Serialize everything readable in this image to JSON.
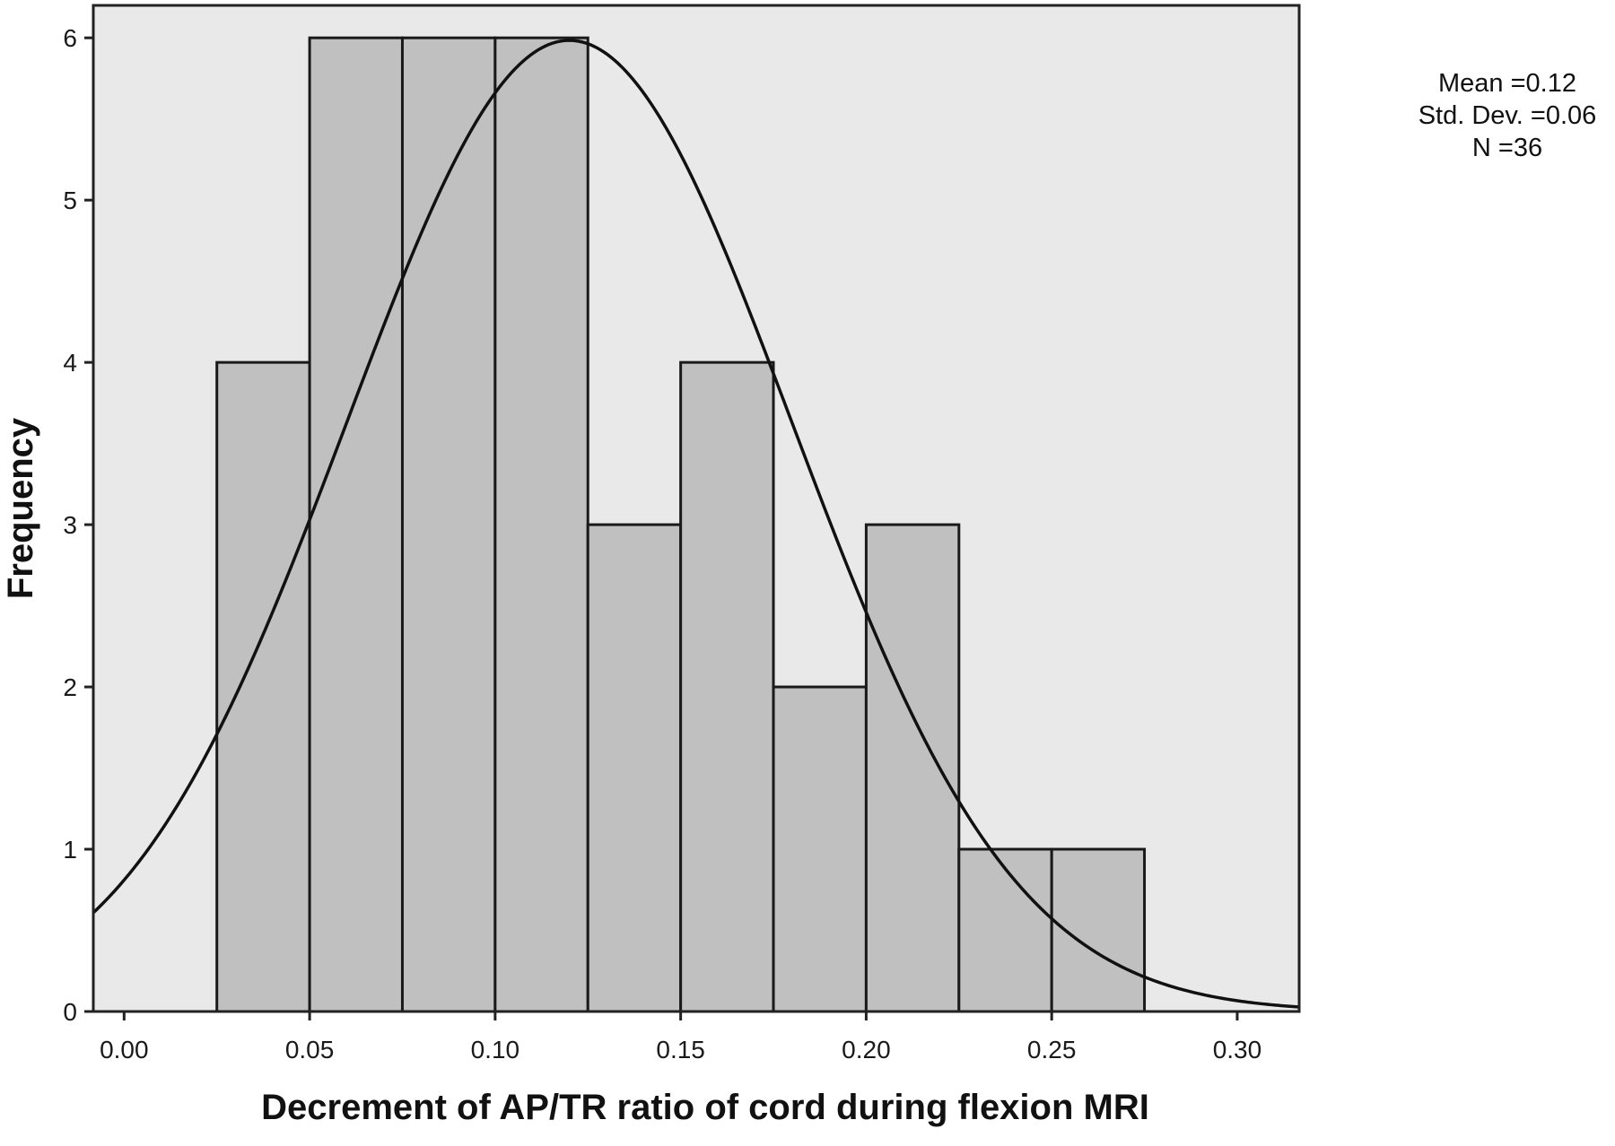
{
  "chart_data": {
    "type": "bar",
    "subtype": "histogram",
    "xlabel": "Decrement of AP/TR ratio of cord during flexion MRI",
    "ylabel": "Frequency",
    "xlim": [
      -0.0083,
      0.3167
    ],
    "ylim": [
      0,
      6.2
    ],
    "x_ticks": [
      {
        "value": 0.0,
        "label": "0.00"
      },
      {
        "value": 0.05,
        "label": "0.05"
      },
      {
        "value": 0.1,
        "label": "0.10"
      },
      {
        "value": 0.15,
        "label": "0.15"
      },
      {
        "value": 0.2,
        "label": "0.20"
      },
      {
        "value": 0.25,
        "label": "0.25"
      },
      {
        "value": 0.3,
        "label": "0.30"
      }
    ],
    "y_ticks": [
      {
        "value": 0,
        "label": "0"
      },
      {
        "value": 1,
        "label": "1"
      },
      {
        "value": 2,
        "label": "2"
      },
      {
        "value": 3,
        "label": "3"
      },
      {
        "value": 4,
        "label": "4"
      },
      {
        "value": 5,
        "label": "5"
      },
      {
        "value": 6,
        "label": "6"
      }
    ],
    "bins": [
      {
        "start": 0.025,
        "end": 0.05,
        "count": 4
      },
      {
        "start": 0.05,
        "end": 0.075,
        "count": 6
      },
      {
        "start": 0.075,
        "end": 0.1,
        "count": 6
      },
      {
        "start": 0.1,
        "end": 0.125,
        "count": 6
      },
      {
        "start": 0.125,
        "end": 0.15,
        "count": 3
      },
      {
        "start": 0.15,
        "end": 0.175,
        "count": 4
      },
      {
        "start": 0.175,
        "end": 0.2,
        "count": 2
      },
      {
        "start": 0.2,
        "end": 0.225,
        "count": 3
      },
      {
        "start": 0.225,
        "end": 0.25,
        "count": 1
      },
      {
        "start": 0.25,
        "end": 0.275,
        "count": 1
      }
    ],
    "normal_curve": {
      "mean": 0.12,
      "std": 0.06,
      "n": 36,
      "bin_width": 0.025
    },
    "stats_text": [
      "Mean =0.12",
      "Std. Dev. =0.06",
      "N =36"
    ],
    "grid": false,
    "legend": "none"
  },
  "colors": {
    "plot_background": "#e9e9e9",
    "bar_fill": "#c0c0c0",
    "bar_stroke": "#1a1a1a",
    "curve": "#111111",
    "frame": "#222222",
    "text": "#111111"
  }
}
